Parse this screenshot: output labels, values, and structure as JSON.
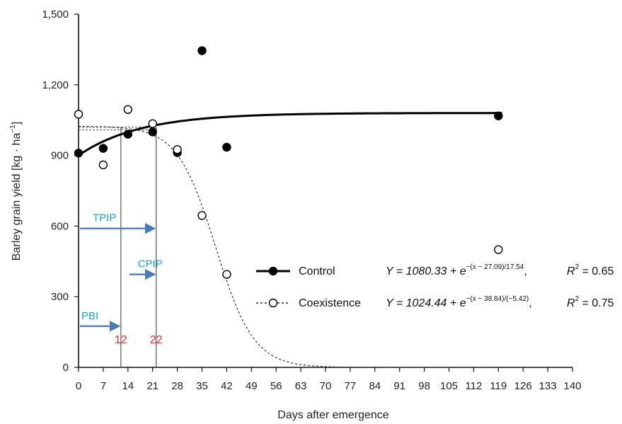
{
  "chart_data": {
    "type": "scatter",
    "xlabel": "Days after emergence",
    "ylabel": "Barley grain yield [kg · ha",
    "ylabel_sup": "−1",
    "ylabel_end": "]",
    "xlim": [
      0,
      140
    ],
    "ylim": [
      0,
      1500
    ],
    "x_ticks": [
      "0",
      "7",
      "14",
      "21",
      "28",
      "35",
      "42",
      "49",
      "56",
      "63",
      "70",
      "77",
      "84",
      "91",
      "98",
      "105",
      "112",
      "119",
      "126",
      "133",
      "140"
    ],
    "y_ticks": [
      "0",
      "300",
      "600",
      "900",
      "1,200",
      "1,500"
    ],
    "grid": false,
    "legend_position": "right",
    "series": [
      {
        "name": "Control",
        "marker": "filled-circle",
        "line": "solid",
        "x": [
          0,
          7,
          14,
          21,
          28,
          35,
          42,
          119
        ],
        "y": [
          910,
          930,
          990,
          1000,
          912,
          1345,
          935,
          1068
        ],
        "fit": {
          "a": 1080.33,
          "b": 27.09,
          "c": 17.54
        },
        "equation_main": "Y = 1080.33 + e",
        "equation_exp": "−(x − 27.09)/17.54",
        "r2_label": "R",
        "r2_value": " = 0.65"
      },
      {
        "name": "Coexistence",
        "marker": "open-circle",
        "line": "dotted",
        "x": [
          0,
          7,
          14,
          21,
          28,
          35,
          42,
          119
        ],
        "y": [
          1075,
          860,
          1095,
          1035,
          925,
          645,
          395,
          500
        ],
        "fit": {
          "a": 1024.44,
          "b": 38.84,
          "c": -5.42
        },
        "equation_main": "Y = 1024.44 + e",
        "equation_exp": "−(x − 38.84)/(−5.42)",
        "r2_label": "R",
        "r2_value": " = 0.75"
      }
    ],
    "reference_level": 1020,
    "vertical_markers": [
      {
        "x": 12,
        "label": "12"
      },
      {
        "x": 22,
        "label": "22"
      }
    ],
    "arrows": [
      {
        "label": "TPIP",
        "from_x": 0,
        "to_x": 22,
        "y": 590
      },
      {
        "label": "CPIP",
        "from_x": 14,
        "to_x": 22,
        "y": 395
      },
      {
        "label": "PBI",
        "from_x": 0,
        "to_x": 12,
        "y": 175
      }
    ],
    "colors": {
      "axis": "#111111",
      "control": "#000000",
      "coexistence": "#333333",
      "arrow": "#4a79b8",
      "annotation_blue": "#1ba1e2",
      "annotation_red": "#e8322a"
    }
  }
}
